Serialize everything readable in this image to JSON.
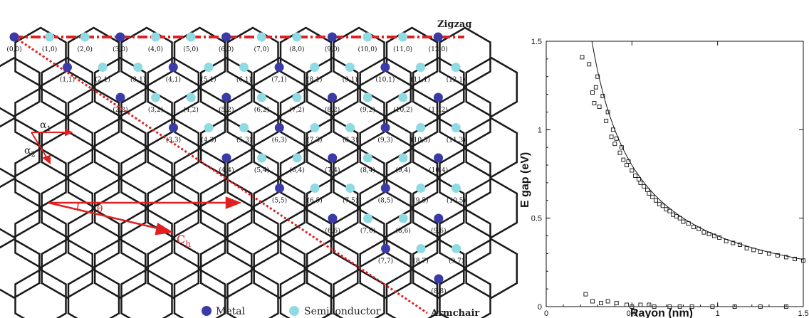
{
  "diagram": {
    "rows": [
      {
        "n": [
          0,
          1,
          2,
          3,
          4,
          5,
          6,
          7,
          8,
          9,
          10,
          11,
          12
        ],
        "m": 0
      },
      {
        "n": [
          1,
          2,
          3,
          4,
          5,
          6,
          7,
          8,
          9,
          10,
          11,
          12
        ],
        "m": 1
      },
      {
        "n": [
          2,
          3,
          4,
          5,
          6,
          7,
          8,
          9,
          10,
          11
        ],
        "m": 2
      },
      {
        "n": [
          3,
          4,
          5,
          6,
          7,
          8,
          9,
          10,
          11
        ],
        "m": 3
      },
      {
        "n": [
          4,
          5,
          6,
          7,
          8,
          9,
          10
        ],
        "m": 4
      },
      {
        "n": [
          5,
          6,
          7,
          8,
          9,
          10
        ],
        "m": 5
      },
      {
        "n": [
          6,
          7,
          8,
          9
        ],
        "m": 6
      },
      {
        "n": [
          7,
          8,
          9
        ],
        "m": 7
      },
      {
        "n": [
          8
        ],
        "m": 8
      }
    ],
    "labels": {
      "zigzag": "Zigzag",
      "armchair": "Armchair",
      "a1": "α",
      "a1_sub": "1",
      "a2": "α",
      "a2_sub": "2",
      "theta": "θ",
      "ch": "C",
      "ch_sub": "h"
    },
    "legend": {
      "metal": "Metal",
      "semiconductor": "Semiconductor"
    },
    "colors": {
      "metal": "#3b3ba8",
      "semiconductor": "#8fdbe3",
      "lattice": "#1a1a1a",
      "red": "#e02020"
    }
  },
  "chart_data": {
    "type": "scatter",
    "xlabel": "Rayon (nm)",
    "ylabel": "E gap (eV)",
    "xlim": [
      0,
      1.5
    ],
    "ylim": [
      0,
      1.5
    ],
    "xticks": [
      "0",
      "0.5",
      "1",
      "1.5"
    ],
    "yticks": [
      "0",
      "0.5",
      "1",
      "1.5"
    ],
    "series": [
      {
        "points": [
          [
            0.21,
            1.41
          ],
          [
            0.25,
            1.37
          ],
          [
            0.27,
            1.21
          ],
          [
            0.28,
            1.15
          ],
          [
            0.29,
            1.24
          ],
          [
            0.3,
            1.3
          ],
          [
            0.31,
            1.13
          ],
          [
            0.33,
            1.19
          ],
          [
            0.35,
            1.05
          ],
          [
            0.36,
            1.1
          ],
          [
            0.38,
            0.96
          ],
          [
            0.39,
            1.0
          ],
          [
            0.4,
            0.92
          ],
          [
            0.41,
            0.95
          ],
          [
            0.43,
            0.87
          ],
          [
            0.44,
            0.9
          ],
          [
            0.45,
            0.83
          ],
          [
            0.47,
            0.8
          ],
          [
            0.48,
            0.82
          ],
          [
            0.5,
            0.77
          ],
          [
            0.52,
            0.74
          ],
          [
            0.54,
            0.72
          ],
          [
            0.55,
            0.7
          ],
          [
            0.57,
            0.68
          ],
          [
            0.59,
            0.66
          ],
          [
            0.6,
            0.64
          ],
          [
            0.62,
            0.62
          ],
          [
            0.64,
            0.6
          ],
          [
            0.66,
            0.58
          ],
          [
            0.68,
            0.57
          ],
          [
            0.7,
            0.55
          ],
          [
            0.72,
            0.54
          ],
          [
            0.74,
            0.52
          ],
          [
            0.76,
            0.51
          ],
          [
            0.78,
            0.5
          ],
          [
            0.8,
            0.48
          ],
          [
            0.83,
            0.47
          ],
          [
            0.86,
            0.45
          ],
          [
            0.89,
            0.44
          ],
          [
            0.92,
            0.42
          ],
          [
            0.95,
            0.41
          ],
          [
            0.98,
            0.4
          ],
          [
            1.01,
            0.39
          ],
          [
            1.05,
            0.37
          ],
          [
            1.09,
            0.36
          ],
          [
            1.13,
            0.35
          ],
          [
            1.17,
            0.33
          ],
          [
            1.21,
            0.32
          ],
          [
            1.25,
            0.31
          ],
          [
            1.3,
            0.3
          ],
          [
            1.35,
            0.29
          ],
          [
            1.4,
            0.28
          ],
          [
            1.45,
            0.27
          ],
          [
            1.5,
            0.26
          ],
          [
            0.23,
            0.07
          ],
          [
            0.27,
            0.03
          ],
          [
            0.32,
            0.02
          ],
          [
            0.36,
            0.03
          ],
          [
            0.41,
            0.02
          ],
          [
            0.47,
            0.01
          ],
          [
            0.55,
            0.01
          ],
          [
            0.63,
            0.0
          ],
          [
            0.72,
            0.0
          ],
          [
            0.85,
            0.0
          ],
          [
            0.97,
            0.0
          ],
          [
            1.1,
            0.0
          ],
          [
            1.25,
            0.0
          ],
          [
            1.4,
            0.0
          ],
          [
            0.5,
            0.0
          ],
          [
            0.6,
            0.01
          ],
          [
            0.78,
            0.0
          ]
        ]
      }
    ],
    "fit_curve": {
      "a": 0.4
    }
  }
}
